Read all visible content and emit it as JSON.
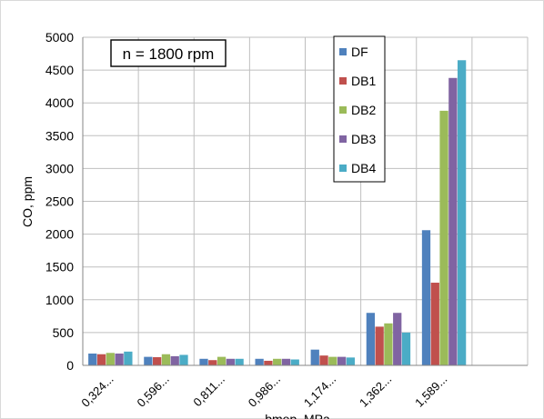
{
  "chart_data": {
    "type": "bar",
    "title": "",
    "annotation": "n = 1800 rpm",
    "xlabel": "bmep, MPa",
    "ylabel": "CO, ppm",
    "ylim": [
      0,
      5000
    ],
    "yticks": [
      0,
      500,
      1000,
      1500,
      2000,
      2500,
      3000,
      3500,
      4000,
      4500,
      5000
    ],
    "grid": true,
    "legend_position": "top-center",
    "categories": [
      "0,324...",
      "0,596...",
      "0,811...",
      "0,986...",
      "1,174...",
      "1,362...",
      "1,589...",
      ""
    ],
    "series": [
      {
        "name": "DF",
        "color": "#4f81bd",
        "values": [
          180,
          130,
          100,
          100,
          240,
          800,
          2060,
          null
        ]
      },
      {
        "name": "DB1",
        "color": "#c0504d",
        "values": [
          170,
          125,
          80,
          70,
          150,
          590,
          1260,
          null
        ]
      },
      {
        "name": "DB2",
        "color": "#9bbb59",
        "values": [
          190,
          170,
          130,
          100,
          130,
          640,
          3880,
          null
        ]
      },
      {
        "name": "DB3",
        "color": "#8064a2",
        "values": [
          180,
          140,
          100,
          100,
          130,
          800,
          4380,
          null
        ]
      },
      {
        "name": "DB4",
        "color": "#4bacc6",
        "values": [
          210,
          160,
          100,
          90,
          120,
          500,
          4650,
          null
        ]
      }
    ]
  }
}
